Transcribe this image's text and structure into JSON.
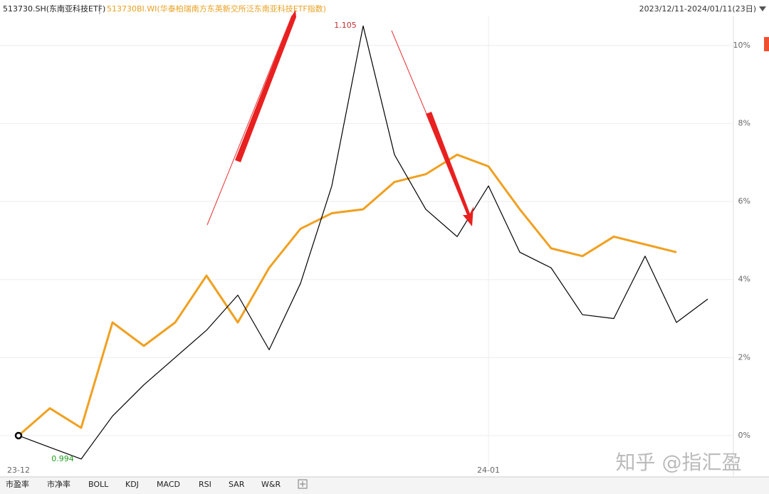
{
  "chart_data": {
    "type": "line",
    "legend": [
      "513730.SH(东南亚科技ETF)",
      "513730BI.WI(华泰柏瑞南方东英新交所泛东南亚科技ETF指数)"
    ],
    "date_range": "2023/12/11-2024/01/11(23日)",
    "categories": [
      "23-12",
      null,
      null,
      null,
      null,
      null,
      null,
      null,
      null,
      null,
      null,
      null,
      null,
      null,
      null,
      "24-01",
      null,
      null,
      null,
      null,
      null,
      null,
      null
    ],
    "series": [
      {
        "name": "513730.SH(东南亚科技ETF)",
        "color": "#000000",
        "values": [
          0,
          -0.3,
          -0.6,
          0.5,
          1.3,
          2.0,
          2.7,
          3.6,
          2.2,
          3.9,
          6.4,
          10.5,
          7.2,
          5.8,
          5.1,
          6.4,
          4.7,
          4.3,
          3.1,
          3.0,
          4.6,
          2.9,
          3.5
        ]
      },
      {
        "name": "513730BI.WI(华泰柏瑞南方东英新交所泛东南亚科技ETF指数)",
        "color": "#f0a020",
        "values": [
          0,
          0.7,
          0.2,
          2.9,
          2.3,
          2.9,
          4.1,
          2.9,
          4.3,
          5.3,
          5.7,
          5.8,
          6.5,
          6.7,
          7.2,
          6.9,
          5.8,
          4.8,
          4.6,
          5.1,
          4.9,
          4.7,
          null
        ]
      }
    ],
    "annotations": [
      "1.105",
      "0.994"
    ],
    "ylim": [
      -0.8,
      10.8
    ],
    "yticks": [
      {
        "value": 0,
        "label": "0%"
      },
      {
        "value": 2,
        "label": "2%"
      },
      {
        "value": 4,
        "label": "4%"
      },
      {
        "value": 6,
        "label": "6%"
      },
      {
        "value": 8,
        "label": "8%"
      },
      {
        "value": 10,
        "label": "10%"
      }
    ],
    "grid": true
  },
  "toolbar": [
    "市盈率",
    "市净率",
    "BOLL",
    "KDJ",
    "MACD",
    "RSI",
    "SAR",
    "W&R"
  ],
  "watermark": "知乎 @指汇盈"
}
